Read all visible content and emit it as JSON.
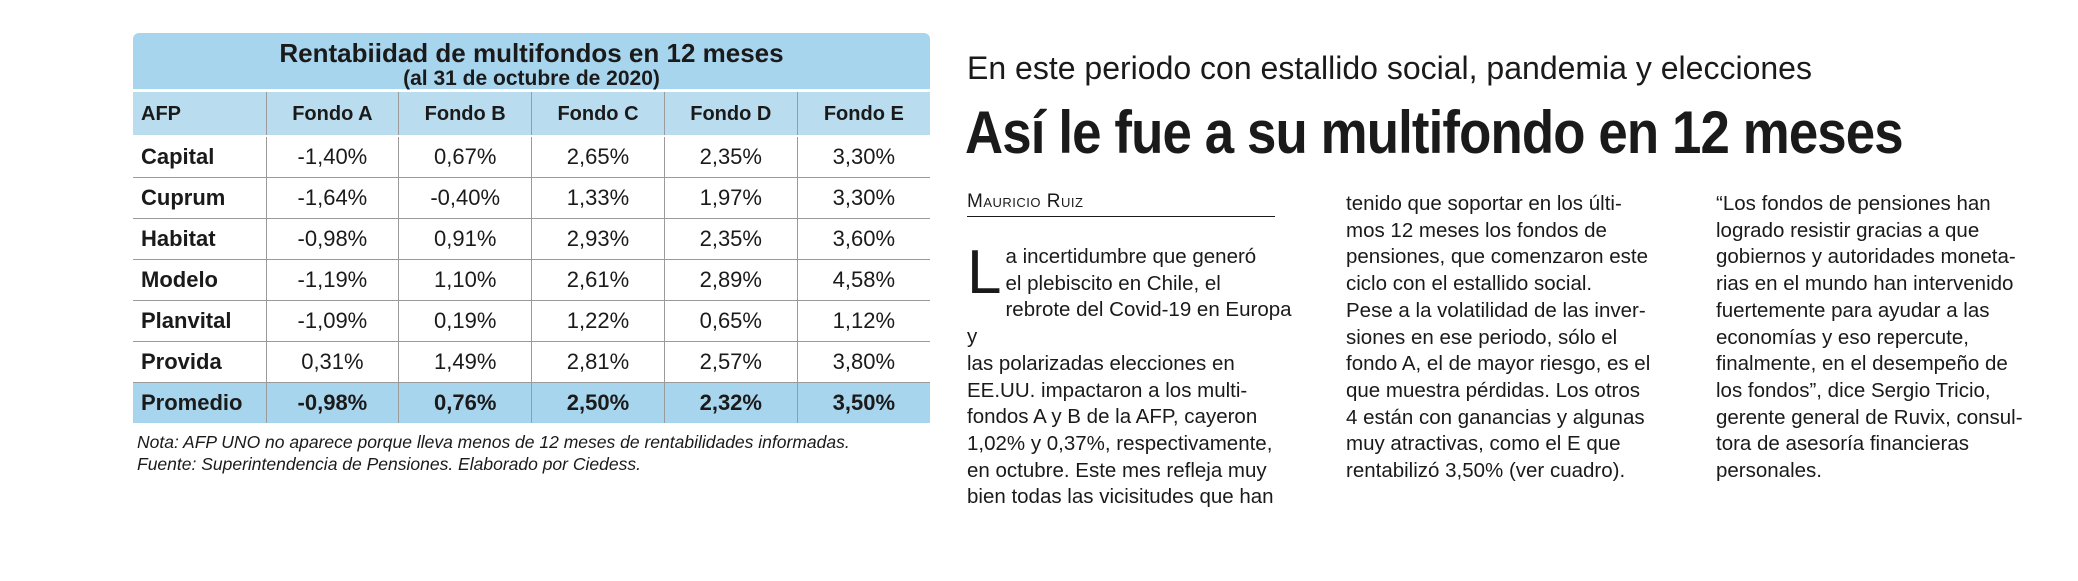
{
  "table": {
    "title": "Rentabiidad de multifondos en 12 meses",
    "subtitle": "(al 31 de octubre de 2020)",
    "headers": [
      "AFP",
      "Fondo A",
      "Fondo B",
      "Fondo C",
      "Fondo D",
      "Fondo E"
    ],
    "rows": [
      [
        "Capital",
        "-1,40%",
        "0,67%",
        "2,65%",
        "2,35%",
        "3,30%"
      ],
      [
        "Cuprum",
        "-1,64%",
        "-0,40%",
        "1,33%",
        "1,97%",
        "3,30%"
      ],
      [
        "Habitat",
        "-0,98%",
        "0,91%",
        "2,93%",
        "2,35%",
        "3,60%"
      ],
      [
        "Modelo",
        "-1,19%",
        "1,10%",
        "2,61%",
        "2,89%",
        "4,58%"
      ],
      [
        "Planvital",
        "-1,09%",
        "0,19%",
        "1,22%",
        "0,65%",
        "1,12%"
      ],
      [
        "Provida",
        "0,31%",
        "1,49%",
        "2,81%",
        "2,57%",
        "3,80%"
      ]
    ],
    "average": [
      "Promedio",
      "-0,98%",
      "0,76%",
      "2,50%",
      "2,32%",
      "3,50%"
    ],
    "note": "Nota: AFP UNO no aparece porque lleva menos de 12 meses de rentabilidades informadas.",
    "source": "Fuente: Superintendencia de Pensiones. Elaborado por Ciedess."
  },
  "article": {
    "kicker": "En este periodo con estallido social, pandemia y elecciones",
    "headline": "Así le fue a su multifondo en 12 meses",
    "byline": "Mauricio Ruiz",
    "dropcap": "L",
    "col1": "a incertidumbre que generó\nel plebiscito en Chile, el\nrebrote del Covid-19 en Europa y\nlas polarizadas elecciones en\nEE.UU. impactaron a los multi-\nfondos A y B de la AFP, cayeron\n1,02% y 0,37%, respectivamente,\nen octubre. Este mes refleja muy\nbien todas las vicisitudes que han",
    "col2": "tenido que soportar en los últi-\nmos 12 meses los fondos de\npensiones, que comenzaron este\nciclo con el estallido social.\nPese a la volatilidad de las inver-\nsiones en ese periodo, sólo el\nfondo A, el de mayor riesgo, es el\nque muestra pérdidas. Los otros\n4 están con ganancias y algunas\nmuy atractivas, como el E que\nrentabilizó 3,50% (ver cuadro).",
    "col3": "“Los fondos de pensiones han\nlogrado resistir gracias a que\ngobiernos y autoridades moneta-\nrias en el mundo han intervenido\nfuertemente para ayudar a las\neconomías y eso repercute,\nfinalmente, en el desempeño de\nlos fondos”, dice Sergio Tricio,\ngerente general de Ruvix, consul-\ntora de asesoría financieras\npersonales."
  }
}
